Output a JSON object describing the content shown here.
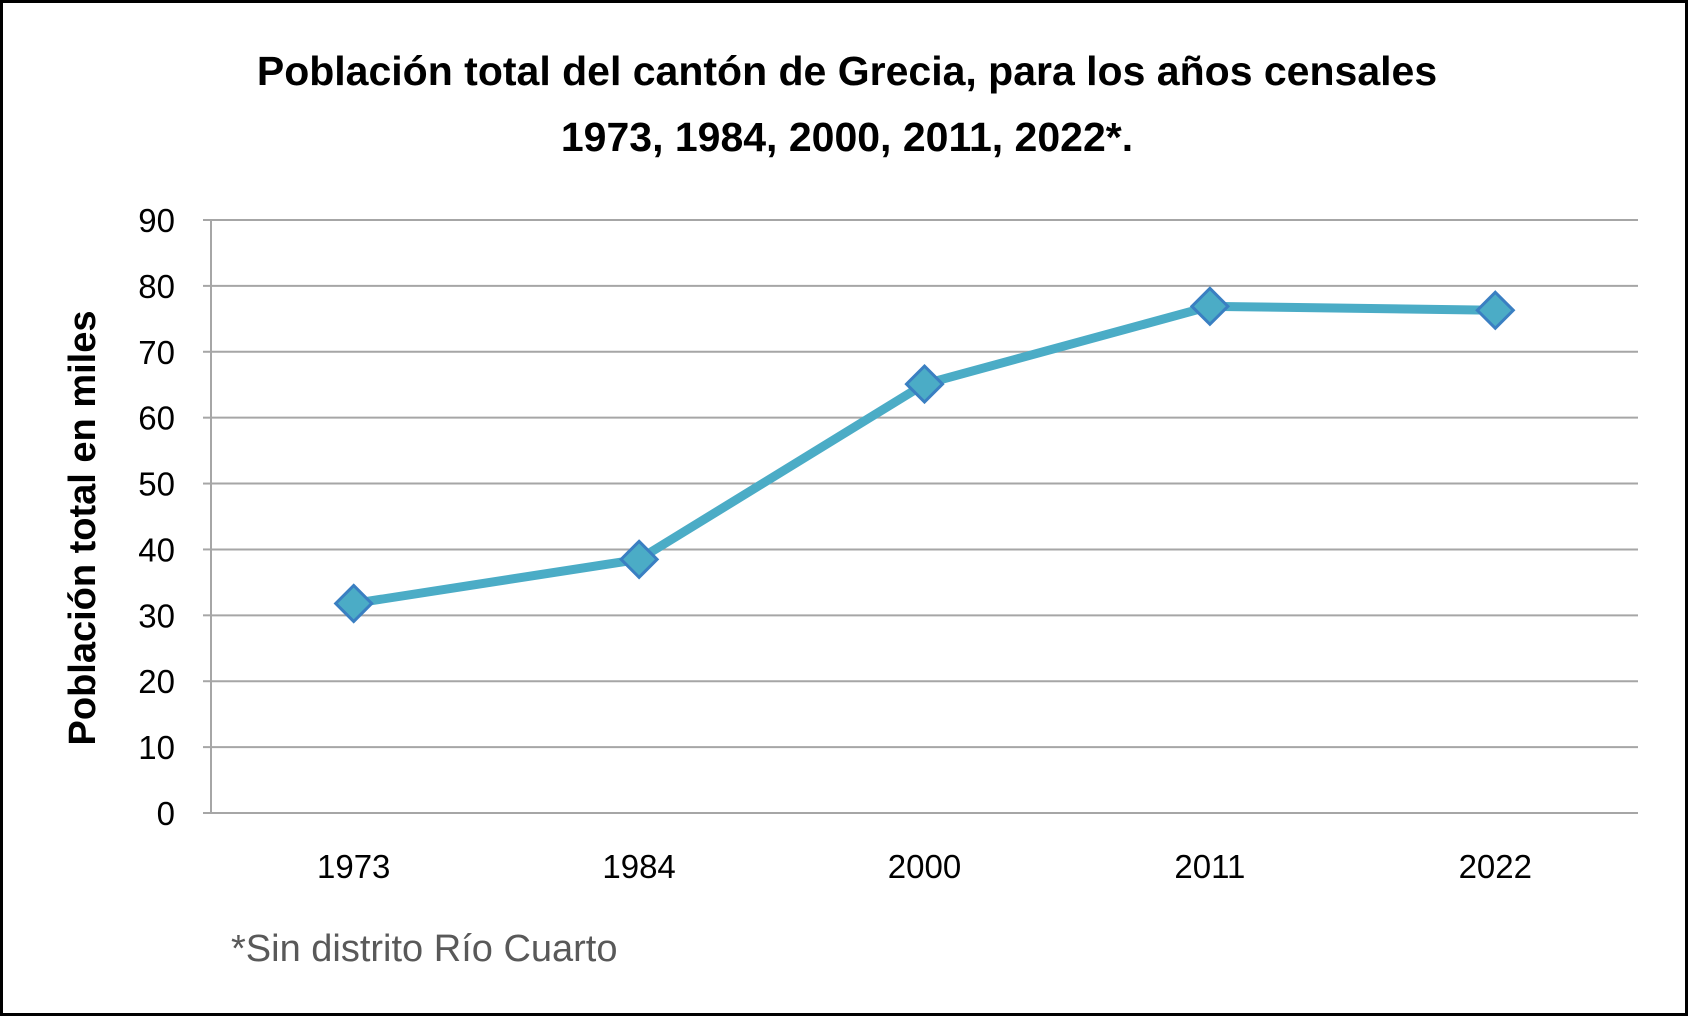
{
  "chart_data": {
    "type": "line",
    "title": [
      "Población total del cantón de Grecia, para los años censales",
      "1973, 1984, 2000, 2011, 2022*."
    ],
    "xlabel": "",
    "ylabel": "Población total en miles",
    "categories": [
      "1973",
      "1984",
      "2000",
      "2011",
      "2022"
    ],
    "series": [
      {
        "values": [
          31.8,
          38.5,
          65.1,
          76.9,
          76.3
        ],
        "color": "#4BACC6",
        "marker_color": "#4BACC6",
        "marker_edge_color": "#3A7FC2",
        "marker": "diamond"
      }
    ],
    "ylim": [
      0,
      90
    ],
    "yticks": [
      0,
      10,
      20,
      30,
      40,
      50,
      60,
      70,
      80,
      90
    ],
    "grid": true,
    "legend": "none",
    "note": "*Sin distrito Río Cuarto"
  }
}
